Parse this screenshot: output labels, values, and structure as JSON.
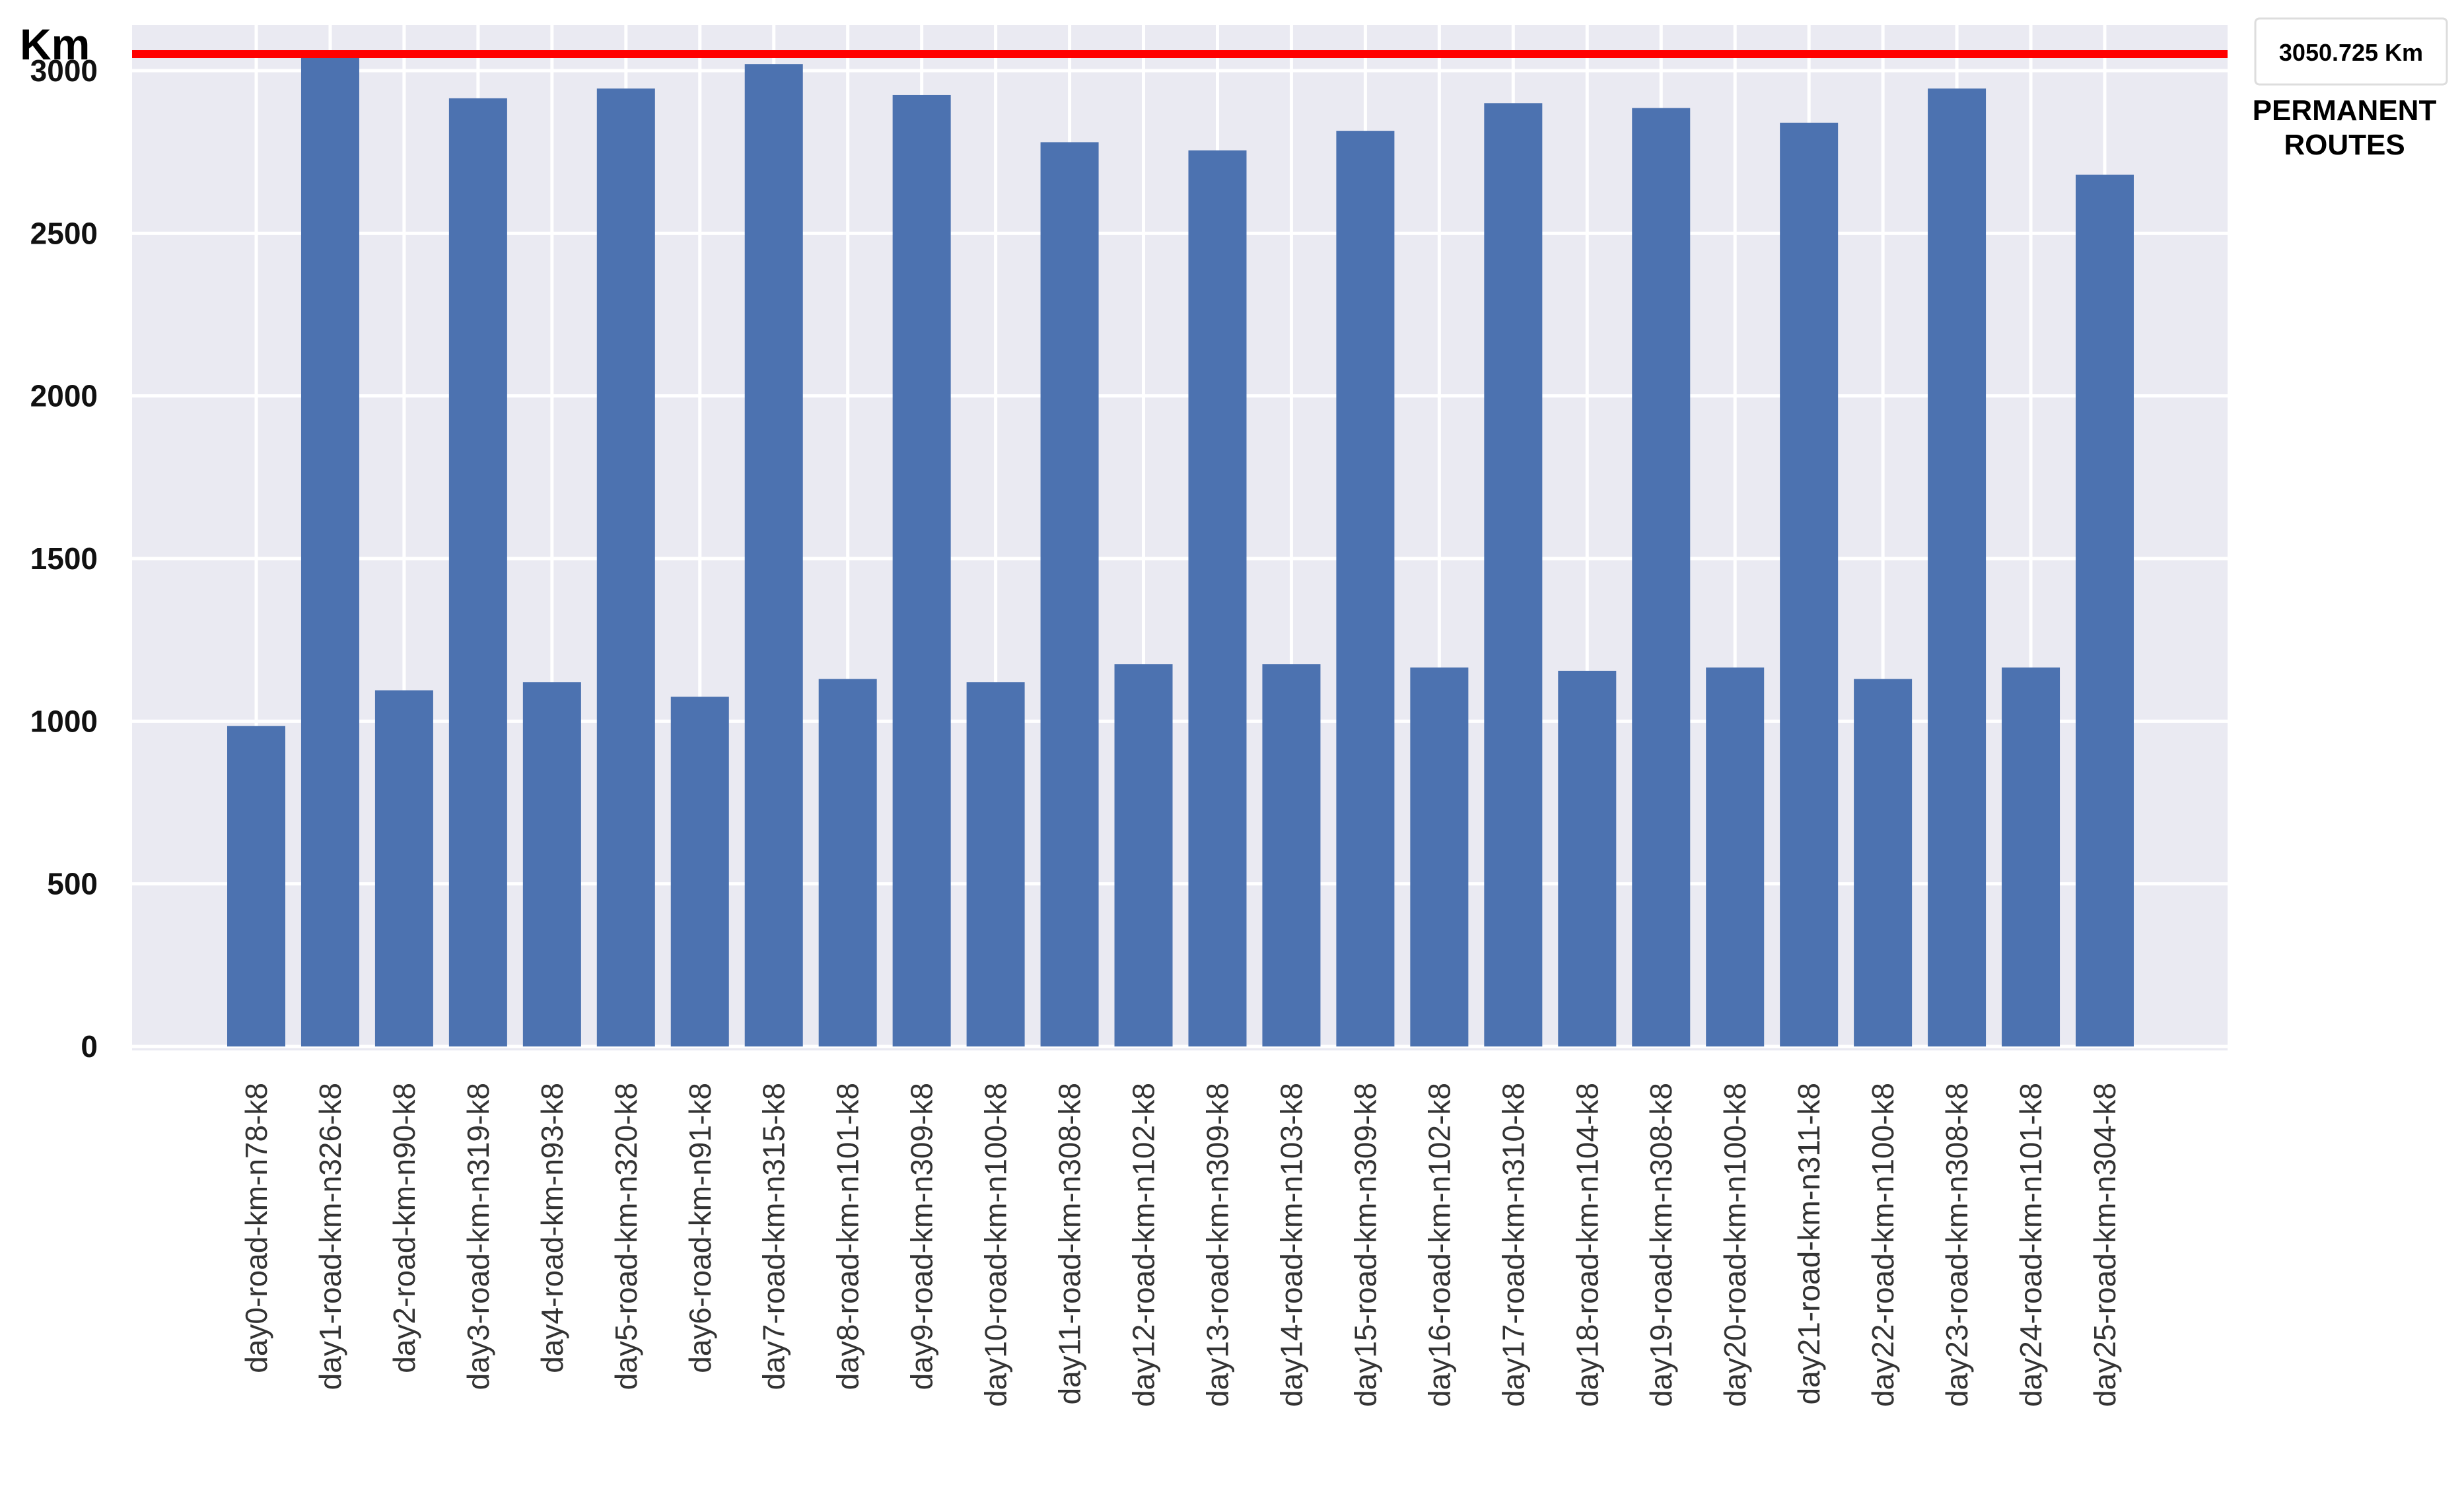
{
  "chart_data": {
    "type": "bar",
    "ylabel": "Km",
    "ylim": [
      0,
      3100
    ],
    "yticks": [
      0,
      500,
      1000,
      1500,
      2000,
      2500,
      3000
    ],
    "grid": true,
    "bar_color": "#4c72b0",
    "background_color": "#eaeaf2",
    "categories": [
      "day0-road-km-n78-k8",
      "day1-road-km-n326-k8",
      "day2-road-km-n90-k8",
      "day3-road-km-n319-k8",
      "day4-road-km-n93-k8",
      "day5-road-km-n320-k8",
      "day6-road-km-n91-k8",
      "day7-road-km-n315-k8",
      "day8-road-km-n101-k8",
      "day9-road-km-n309-k8",
      "day10-road-km-n100-k8",
      "day11-road-km-n308-k8",
      "day12-road-km-n102-k8",
      "day13-road-km-n309-k8",
      "day14-road-km-n103-k8",
      "day15-road-km-n309-k8",
      "day16-road-km-n102-k8",
      "day17-road-km-n310-k8",
      "day18-road-km-n104-k8",
      "day19-road-km-n308-k8",
      "day20-road-km-n100-k8",
      "day21-road-km-n311-k8",
      "day22-road-km-n100-k8",
      "day23-road-km-n308-k8",
      "day24-road-km-n101-k8",
      "day25-road-km-n304-k8"
    ],
    "values": [
      985,
      3045,
      1095,
      2915,
      1120,
      2945,
      1075,
      3020,
      1130,
      2925,
      1120,
      2780,
      1175,
      2755,
      1175,
      2815,
      1165,
      2900,
      1155,
      2885,
      1165,
      2840,
      1130,
      2945,
      1165,
      2680
    ],
    "reference_line": {
      "value": 3050.725,
      "label": "3050.725 Km",
      "caption_lines": [
        "PERMANENT",
        "ROUTES"
      ],
      "color": "#ff0000"
    }
  }
}
